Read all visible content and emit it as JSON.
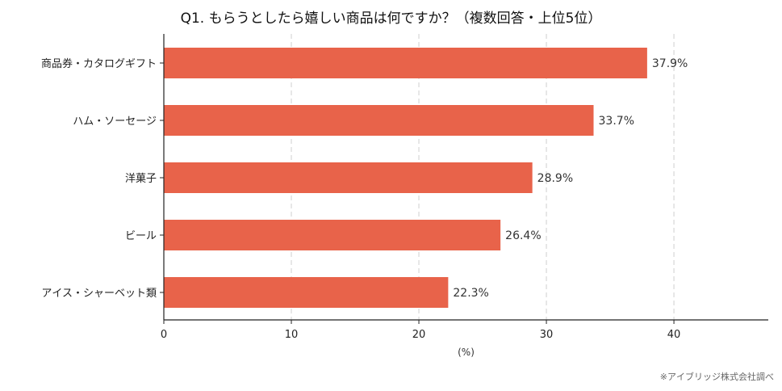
{
  "chart_data": {
    "type": "bar",
    "orientation": "horizontal",
    "title": "Q1. もらうとしたら嬉しい商品は何ですか？（複数回答・上位5位）",
    "categories": [
      "商品券・カタログギフト",
      "ハム・ソーセージ",
      "洋菓子",
      "ビール",
      "アイス・シャーベット類"
    ],
    "values": [
      37.9,
      33.7,
      28.9,
      26.4,
      22.3
    ],
    "value_labels": [
      "37.9%",
      "33.7%",
      "28.9%",
      "26.4%",
      "22.3%"
    ],
    "xlabel": "(%)",
    "ylabel": "",
    "xlim": [
      0,
      47.4
    ],
    "xticks": [
      0,
      10,
      20,
      30,
      40
    ],
    "grid": "vertical-dashed",
    "bar_color": "#E8634A"
  },
  "footnote": "※アイブリッジ株式会社調べ"
}
